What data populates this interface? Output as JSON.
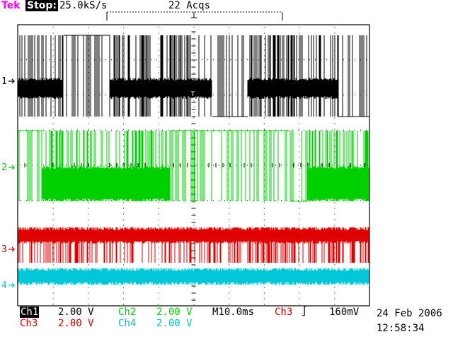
{
  "header": {
    "brand": "Tek",
    "state": "Stop:",
    "sample_rate": "25.0kS/s",
    "acquisitions": "22 Acqs"
  },
  "channels": [
    {
      "marker": "1",
      "label": "Ch1",
      "scale": "2.00 V",
      "color": "#000000"
    },
    {
      "marker": "2",
      "label": "Ch2",
      "scale": "2.00 V",
      "color": "#00d000"
    },
    {
      "marker": "3",
      "label": "Ch3",
      "scale": "2.00 V",
      "color": "#e00000"
    },
    {
      "marker": "4",
      "label": "Ch4",
      "scale": "2.00 V",
      "color": "#00c8d8"
    }
  ],
  "timebase": "M10.0ms",
  "trigger": {
    "source": "Ch3",
    "slope_symbol": "∫",
    "level": "160mV"
  },
  "timestamp": {
    "date": "24 Feb 2006",
    "time": "12:58:34"
  },
  "colors": {
    "ch1": "#000000",
    "ch2": "#00d000",
    "ch3": "#e00000",
    "ch4": "#00c8d8",
    "brand": "#ff00ff"
  }
}
